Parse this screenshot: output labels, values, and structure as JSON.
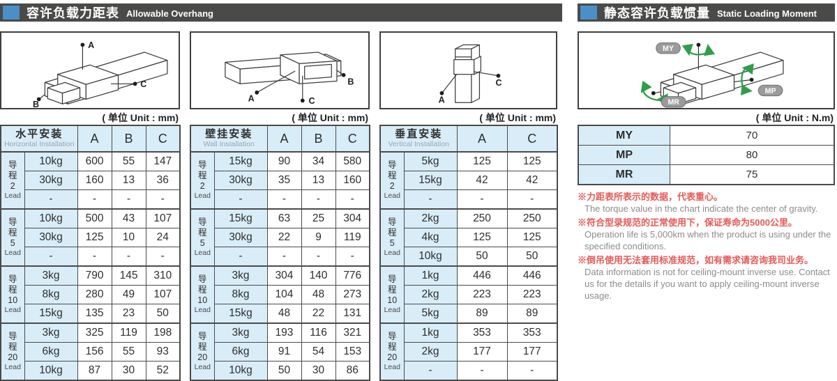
{
  "headers": {
    "overhang": {
      "zh": "容许负载力距表",
      "en": "Allowable Overhang"
    },
    "moment": {
      "zh": "静态容许负载惯量",
      "en": "Static Loading Moment"
    }
  },
  "units": {
    "mm": "( 单位 Unit : mm)",
    "nm": "( 单位 Unit : N.m)"
  },
  "colors": {
    "accent_blue": "#4a8fc7",
    "bar_dark": "#4a4a48",
    "cell_blue": "#d9edf8",
    "note_red": "#e45a57",
    "rotation_green": "#2f9e49"
  },
  "diagram_labels": {
    "a": "A",
    "b": "B",
    "c": "C",
    "my": "MY",
    "mp": "MP",
    "mr": "MR"
  },
  "tables": [
    {
      "name_zh": "水平安装",
      "name_en": "Horizontal Installation",
      "columns": [
        "A",
        "B",
        "C"
      ],
      "groups": [
        {
          "lead_prefix": [
            "导",
            "程"
          ],
          "lead_num": "2",
          "lead_word": "Lead",
          "rows": [
            [
              "10kg",
              "600",
              "55",
              "147"
            ],
            [
              "30kg",
              "160",
              "13",
              "36"
            ],
            [
              "-",
              "-",
              "-",
              "-"
            ]
          ]
        },
        {
          "lead_prefix": [
            "导",
            "程"
          ],
          "lead_num": "5",
          "lead_word": "Lead",
          "rows": [
            [
              "10kg",
              "500",
              "43",
              "107"
            ],
            [
              "30kg",
              "125",
              "10",
              "24"
            ],
            [
              "-",
              "-",
              "-",
              "-"
            ]
          ]
        },
        {
          "lead_prefix": [
            "导",
            "程"
          ],
          "lead_num": "10",
          "lead_word": "Lead",
          "rows": [
            [
              "3kg",
              "790",
              "145",
              "310"
            ],
            [
              "8kg",
              "280",
              "49",
              "107"
            ],
            [
              "15kg",
              "135",
              "23",
              "50"
            ]
          ]
        },
        {
          "lead_prefix": [
            "导",
            "程"
          ],
          "lead_num": "20",
          "lead_word": "Lead",
          "rows": [
            [
              "3kg",
              "325",
              "119",
              "198"
            ],
            [
              "6kg",
              "156",
              "55",
              "93"
            ],
            [
              "10kg",
              "87",
              "30",
              "52"
            ]
          ]
        }
      ]
    },
    {
      "name_zh": "壁挂安装",
      "name_en": "Wall Installation",
      "columns": [
        "A",
        "B",
        "C"
      ],
      "groups": [
        {
          "lead_prefix": [
            "导",
            "程"
          ],
          "lead_num": "2",
          "lead_word": "Lead",
          "rows": [
            [
              "15kg",
              "90",
              "34",
              "580"
            ],
            [
              "30kg",
              "35",
              "13",
              "160"
            ],
            [
              "-",
              "-",
              "-",
              "-"
            ]
          ]
        },
        {
          "lead_prefix": [
            "导",
            "程"
          ],
          "lead_num": "5",
          "lead_word": "Lead",
          "rows": [
            [
              "15kg",
              "63",
              "25",
              "304"
            ],
            [
              "30kg",
              "22",
              "9",
              "119"
            ],
            [
              "-",
              "-",
              "-",
              "-"
            ]
          ]
        },
        {
          "lead_prefix": [
            "导",
            "程"
          ],
          "lead_num": "10",
          "lead_word": "Lead",
          "rows": [
            [
              "3kg",
              "304",
              "140",
              "776"
            ],
            [
              "8kg",
              "104",
              "48",
              "273"
            ],
            [
              "15kg",
              "48",
              "22",
              "131"
            ]
          ]
        },
        {
          "lead_prefix": [
            "导",
            "程"
          ],
          "lead_num": "20",
          "lead_word": "Lead",
          "rows": [
            [
              "3kg",
              "193",
              "116",
              "321"
            ],
            [
              "6kg",
              "91",
              "54",
              "153"
            ],
            [
              "10kg",
              "50",
              "30",
              "86"
            ]
          ]
        }
      ]
    },
    {
      "name_zh": "垂直安装",
      "name_en": "Vertical Installation",
      "columns": [
        "A",
        "C"
      ],
      "groups": [
        {
          "lead_prefix": [
            "导",
            "程"
          ],
          "lead_num": "2",
          "lead_word": "Lead",
          "rows": [
            [
              "5kg",
              "125",
              "125"
            ],
            [
              "15kg",
              "42",
              "42"
            ],
            [
              "-",
              "-",
              "-"
            ]
          ]
        },
        {
          "lead_prefix": [
            "导",
            "程"
          ],
          "lead_num": "5",
          "lead_word": "Lead",
          "rows": [
            [
              "2kg",
              "250",
              "250"
            ],
            [
              "4kg",
              "125",
              "125"
            ],
            [
              "10kg",
              "50",
              "50"
            ]
          ]
        },
        {
          "lead_prefix": [
            "导",
            "程"
          ],
          "lead_num": "10",
          "lead_word": "Lead",
          "rows": [
            [
              "1kg",
              "446",
              "446"
            ],
            [
              "2kg",
              "223",
              "223"
            ],
            [
              "5kg",
              "89",
              "89"
            ]
          ]
        },
        {
          "lead_prefix": [
            "导",
            "程"
          ],
          "lead_num": "20",
          "lead_word": "Lead",
          "rows": [
            [
              "1kg",
              "353",
              "353"
            ],
            [
              "2kg",
              "177",
              "177"
            ],
            [
              "-",
              "-",
              "-"
            ]
          ]
        }
      ]
    }
  ],
  "moment_table": {
    "rows": [
      {
        "label": "MY",
        "value": "70"
      },
      {
        "label": "MP",
        "value": "80"
      },
      {
        "label": "MR",
        "value": "75"
      }
    ]
  },
  "notes": [
    {
      "zh": "※力距表所表示的数据，代表重心。",
      "en": "The torque value in the chart indicate the center of gravity."
    },
    {
      "zh": "※符合型录规范的正常使用下，保证寿命为5000公里。",
      "en": "Operation life is 5,000km when the product is using under the specified conditions."
    },
    {
      "zh": "※倒吊使用无法套用标准规范，如有需求请咨询我司业务。",
      "en": "Data information is not for ceiling-mount inverse use. Contact us for the details if you want to apply ceiling-mount inverse usage."
    }
  ]
}
